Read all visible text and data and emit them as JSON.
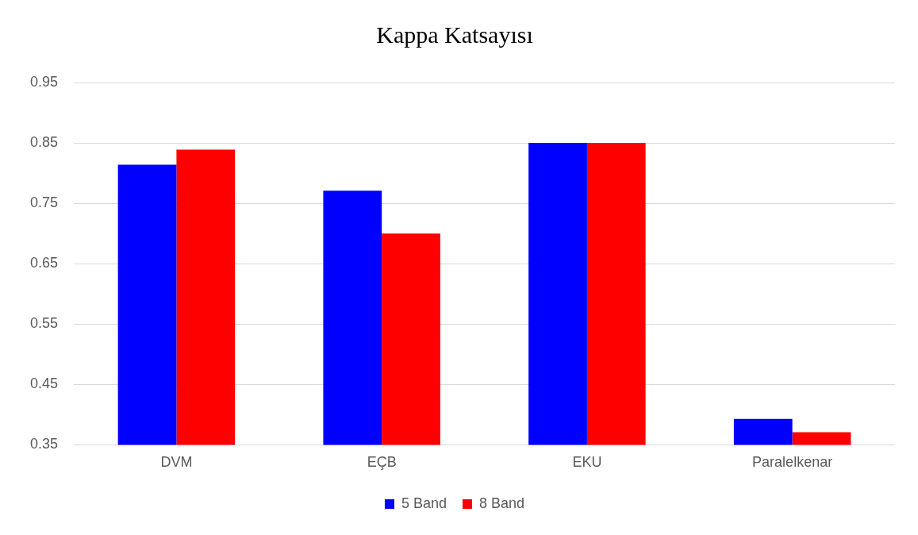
{
  "chart_data": {
    "type": "bar",
    "title": "Kappa Katsayısı",
    "categories": [
      "DVM",
      "EÇB",
      "EKU",
      "Paralelkenar"
    ],
    "series": [
      {
        "name": "5 Band",
        "color": "#0000ff",
        "values": [
          0.814,
          0.771,
          0.85,
          0.393
        ]
      },
      {
        "name": "8 Band",
        "color": "#ff0000",
        "values": [
          0.839,
          0.7,
          0.85,
          0.371
        ]
      }
    ],
    "ylim": [
      0.35,
      0.95
    ],
    "yticks": [
      0.35,
      0.45,
      0.55,
      0.65,
      0.75,
      0.85,
      0.95
    ],
    "grid": "y",
    "legend": "bottom"
  }
}
